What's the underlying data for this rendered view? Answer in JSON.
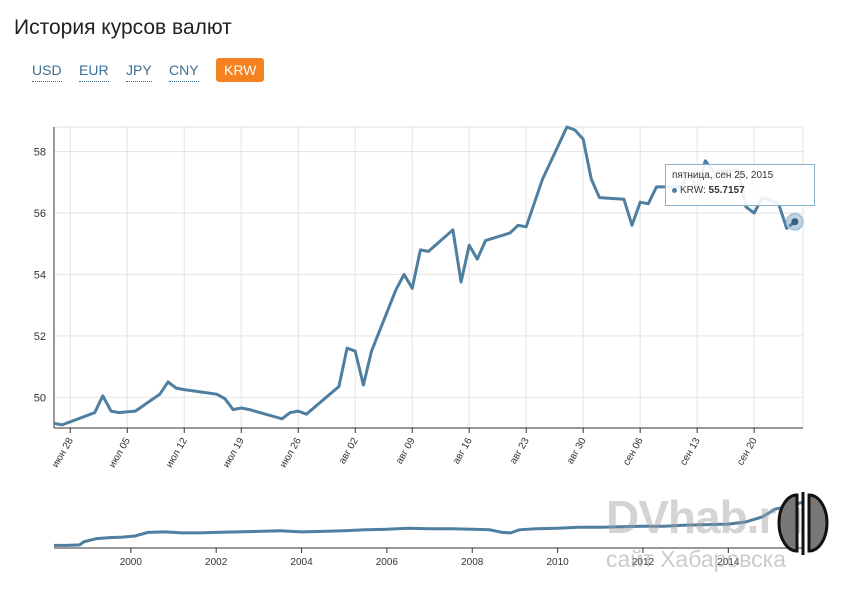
{
  "page": {
    "title": "История курсов валют"
  },
  "tabs": [
    {
      "label": "USD",
      "active": false
    },
    {
      "label": "EUR",
      "active": false
    },
    {
      "label": "JPY",
      "active": false
    },
    {
      "label": "CNY",
      "active": false
    },
    {
      "label": "KRW",
      "active": true
    }
  ],
  "tooltip": {
    "date": "пятница, сен 25, 2015",
    "series": "KRW",
    "value": "55.7157"
  },
  "watermark": {
    "title": "DVhab.ru",
    "subtitle": "сайт Хабаровска"
  },
  "colors": {
    "series": "#4f7fa0",
    "accent": "#f58220"
  },
  "chart_data": [
    {
      "type": "line",
      "grid": true,
      "ylim": [
        49,
        58.8
      ],
      "y_ticks": [
        50,
        52,
        54,
        56,
        58
      ],
      "x_tick_labels": [
        "июн 28",
        "июл 05",
        "июл 12",
        "июл 19",
        "июл 26",
        "авг 02",
        "авг 09",
        "авг 16",
        "авг 23",
        "авг 30",
        "сен 06",
        "сен 13",
        "сен 20"
      ],
      "x_start": "2015-06-26",
      "x_end": "2015-09-26",
      "series": [
        {
          "values": [
            [
              "2015-06-26",
              49.15
            ],
            [
              "2015-06-27",
              49.1
            ],
            [
              "2015-06-30",
              49.4
            ],
            [
              "2015-07-01",
              49.5
            ],
            [
              "2015-07-02",
              50.05
            ],
            [
              "2015-07-03",
              49.55
            ],
            [
              "2015-07-04",
              49.5
            ],
            [
              "2015-07-06",
              49.55
            ],
            [
              "2015-07-09",
              50.1
            ],
            [
              "2015-07-10",
              50.5
            ],
            [
              "2015-07-11",
              50.3
            ],
            [
              "2015-07-12",
              50.25
            ],
            [
              "2015-07-16",
              50.1
            ],
            [
              "2015-07-17",
              49.95
            ],
            [
              "2015-07-18",
              49.6
            ],
            [
              "2015-07-19",
              49.65
            ],
            [
              "2015-07-20",
              49.6
            ],
            [
              "2015-07-24",
              49.3
            ],
            [
              "2015-07-25",
              49.5
            ],
            [
              "2015-07-26",
              49.55
            ],
            [
              "2015-07-27",
              49.45
            ],
            [
              "2015-07-31",
              50.35
            ],
            [
              "2015-08-01",
              51.6
            ],
            [
              "2015-08-02",
              51.5
            ],
            [
              "2015-08-03",
              50.4
            ],
            [
              "2015-08-04",
              51.5
            ],
            [
              "2015-08-07",
              53.5
            ],
            [
              "2015-08-08",
              54
            ],
            [
              "2015-08-09",
              53.55
            ],
            [
              "2015-08-10",
              54.8
            ],
            [
              "2015-08-11",
              54.75
            ],
            [
              "2015-08-14",
              55.45
            ],
            [
              "2015-08-15",
              53.75
            ],
            [
              "2015-08-16",
              54.95
            ],
            [
              "2015-08-17",
              54.5
            ],
            [
              "2015-08-18",
              55.1
            ],
            [
              "2015-08-21",
              55.35
            ],
            [
              "2015-08-22",
              55.6
            ],
            [
              "2015-08-23",
              55.55
            ],
            [
              "2015-08-25",
              57.1
            ],
            [
              "2015-08-28",
              58.8
            ],
            [
              "2015-08-29",
              58.7
            ],
            [
              "2015-08-30",
              58.4
            ],
            [
              "2015-08-31",
              57.1
            ],
            [
              "2015-09-01",
              56.5
            ],
            [
              "2015-09-04",
              56.45
            ],
            [
              "2015-09-05",
              55.6
            ],
            [
              "2015-09-06",
              56.35
            ],
            [
              "2015-09-07",
              56.3
            ],
            [
              "2015-09-08",
              56.85
            ],
            [
              "2015-09-11",
              56.85
            ],
            [
              "2015-09-12",
              57.3
            ],
            [
              "2015-09-13",
              56.8
            ],
            [
              "2015-09-14",
              57.7
            ],
            [
              "2015-09-15",
              57.35
            ],
            [
              "2015-09-18",
              57.4
            ],
            [
              "2015-09-19",
              56.2
            ],
            [
              "2015-09-20",
              56.0
            ],
            [
              "2015-09-21",
              56.5
            ],
            [
              "2015-09-22",
              56.4
            ],
            [
              "2015-09-23",
              56.3
            ],
            [
              "2015-09-24",
              55.5
            ],
            [
              "2015-09-25",
              55.7157
            ]
          ]
        }
      ]
    },
    {
      "type": "line",
      "x_tick_labels": [
        "2000",
        "2002",
        "2004",
        "2006",
        "2008",
        "2010",
        "2012",
        "2014"
      ],
      "x_ticks": [
        2000,
        2002,
        2004,
        2006,
        2008,
        2010,
        2012,
        2014
      ],
      "xlim": [
        1998.2,
        2015.75
      ],
      "ylim": [
        0,
        100
      ],
      "series": [
        {
          "values": [
            [
              1998.2,
              5
            ],
            [
              1998.5,
              5
            ],
            [
              1998.8,
              6
            ],
            [
              1998.9,
              12
            ],
            [
              1999.2,
              18
            ],
            [
              1999.5,
              20
            ],
            [
              1999.8,
              21
            ],
            [
              2000.1,
              23
            ],
            [
              2000.4,
              30
            ],
            [
              2000.8,
              31
            ],
            [
              2001.2,
              29
            ],
            [
              2001.6,
              29
            ],
            [
              2002.0,
              30
            ],
            [
              2002.5,
              31
            ],
            [
              2003.0,
              32
            ],
            [
              2003.5,
              33
            ],
            [
              2004.0,
              31
            ],
            [
              2004.5,
              32
            ],
            [
              2005.0,
              33
            ],
            [
              2005.5,
              35
            ],
            [
              2006.0,
              36
            ],
            [
              2006.5,
              38
            ],
            [
              2007.0,
              37
            ],
            [
              2007.5,
              37
            ],
            [
              2008.0,
              36
            ],
            [
              2008.4,
              35
            ],
            [
              2008.7,
              30
            ],
            [
              2008.9,
              29
            ],
            [
              2009.1,
              35
            ],
            [
              2009.5,
              37
            ],
            [
              2010.0,
              38
            ],
            [
              2010.5,
              40
            ],
            [
              2011.0,
              40
            ],
            [
              2011.5,
              41
            ],
            [
              2012.0,
              42
            ],
            [
              2012.5,
              42
            ],
            [
              2013.0,
              44
            ],
            [
              2013.5,
              45
            ],
            [
              2014.0,
              46
            ],
            [
              2014.4,
              50
            ],
            [
              2014.8,
              60
            ],
            [
              2015.1,
              75
            ],
            [
              2015.4,
              80
            ],
            [
              2015.6,
              85
            ],
            [
              2015.75,
              88
            ]
          ]
        }
      ]
    }
  ]
}
